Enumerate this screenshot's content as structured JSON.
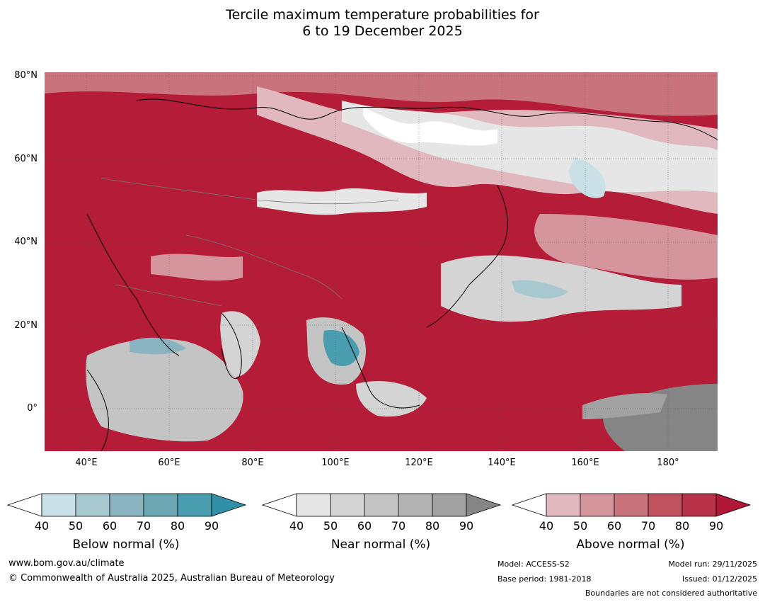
{
  "title": {
    "line1": "Tercile maximum temperature probabilities for",
    "line2": "6 to 19 December 2025"
  },
  "map": {
    "lat_labels": [
      "80°N",
      "60°N",
      "40°N",
      "20°N",
      "0°"
    ],
    "lon_labels": [
      "40°E",
      "60°E",
      "80°E",
      "100°E",
      "120°E",
      "140°E",
      "160°E",
      "180°"
    ],
    "background_color": "#b51c37"
  },
  "colorbars": [
    {
      "label": "Below normal (%)",
      "ticks": [
        "40",
        "50",
        "60",
        "70",
        "80",
        "90"
      ],
      "colors": [
        "#ffffff",
        "#c8e0e6",
        "#a8c8cf",
        "#8ab4bf",
        "#6aa7b3",
        "#4a9caf",
        "#2f8fa6"
      ]
    },
    {
      "label": "Near normal (%)",
      "ticks": [
        "40",
        "50",
        "60",
        "70",
        "80",
        "90"
      ],
      "colors": [
        "#ffffff",
        "#e6e6e6",
        "#d4d4d4",
        "#c4c4c4",
        "#b3b3b3",
        "#a1a1a1",
        "#858585"
      ]
    },
    {
      "label": "Above normal (%)",
      "ticks": [
        "40",
        "50",
        "60",
        "70",
        "80",
        "90"
      ],
      "colors": [
        "#ffffff",
        "#e0b8be",
        "#d4959c",
        "#c9737c",
        "#c0525f",
        "#b8324a",
        "#b01636"
      ]
    }
  ],
  "footer": {
    "website": "www.bom.gov.au/climate",
    "copyright": "© Commonwealth of Australia 2025, Australian Bureau of Meteorology",
    "model": "Model: ACCESS-S2",
    "base_period": "Base period: 1981-2018",
    "model_run": "Model run: 29/11/2025",
    "issued": "Issued: 01/12/2025",
    "boundaries": "Boundaries are not considered authoritative"
  }
}
